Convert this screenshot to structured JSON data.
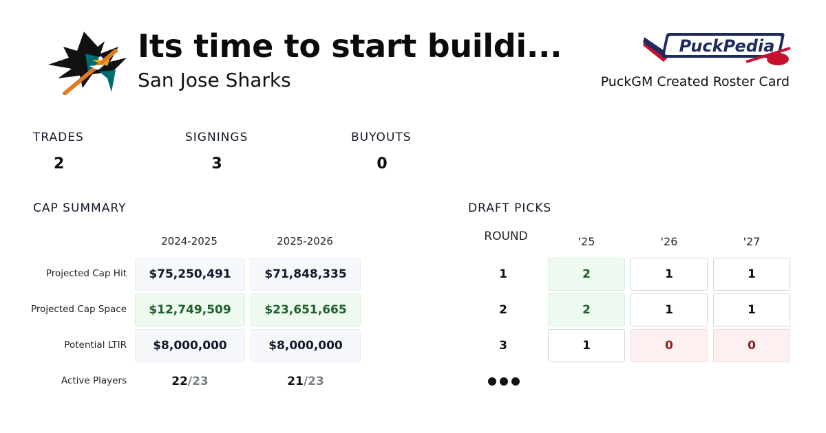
{
  "header": {
    "title": "Its time to start buildi...",
    "team": "San Jose Sharks",
    "team_logo_icon": "shark-logo-icon",
    "brand_logo_text": "PuckPedia",
    "brand_caption": "PuckGM Created Roster Card"
  },
  "stats": [
    {
      "label": "TRADES",
      "value": "2"
    },
    {
      "label": "SIGNINGS",
      "value": "3"
    },
    {
      "label": "BUYOUTS",
      "value": "0"
    }
  ],
  "cap_summary": {
    "title": "CAP SUMMARY",
    "seasons": [
      "2024-2025",
      "2025-2026"
    ],
    "rows": [
      {
        "label": "Projected Cap Hit",
        "values": [
          "$75,250,491",
          "$71,848,335"
        ]
      },
      {
        "label": "Projected Cap Space",
        "values": [
          "$12,749,509",
          "$23,651,665"
        ]
      },
      {
        "label": "Potential LTIR",
        "values": [
          "$8,000,000",
          "$8,000,000"
        ]
      },
      {
        "label": "Active Players",
        "values": [
          {
            "count": "22",
            "max": "/23"
          },
          {
            "count": "21",
            "max": "/23"
          }
        ]
      }
    ]
  },
  "draft_picks": {
    "title": "DRAFT PICKS",
    "round_header": "ROUND",
    "years": [
      "'25",
      "'26",
      "'27"
    ],
    "rounds": [
      {
        "round": "1",
        "picks": [
          "2",
          "1",
          "1"
        ]
      },
      {
        "round": "2",
        "picks": [
          "2",
          "1",
          "1"
        ]
      },
      {
        "round": "3",
        "picks": [
          "1",
          "0",
          "0"
        ]
      }
    ],
    "more_icon": "ellipsis-icon"
  },
  "colors": {
    "surplus_green": "#1f5f2c",
    "deficit_red": "#8a1c1c",
    "brand_navy": "#1f2a5c",
    "brand_red": "#c8102e",
    "shark_teal": "#006d75"
  }
}
